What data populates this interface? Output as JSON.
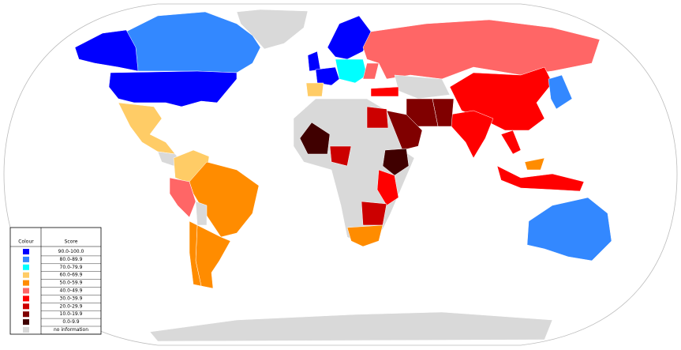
{
  "legend": {
    "header": [
      "Colour",
      "Score"
    ],
    "rows": [
      {
        "label": "90.0-100.0",
        "color": "#0000ff"
      },
      {
        "label": "80.0-89.9",
        "color": "#3388ff"
      },
      {
        "label": "70.0-79.9",
        "color": "#00ffff"
      },
      {
        "label": "60.0-69.9",
        "color": "#ffcc66"
      },
      {
        "label": "50.0-59.9",
        "color": "#ff8c00"
      },
      {
        "label": "40.0-49.9",
        "color": "#ff6666"
      },
      {
        "label": "30.0-39.9",
        "color": "#ff0000"
      },
      {
        "label": "20.0-29.9",
        "color": "#cc0000"
      },
      {
        "label": "10.0-19.9",
        "color": "#800000"
      },
      {
        "label": "0.0-9.9",
        "color": "#400000"
      },
      {
        "label": "no information",
        "color": "#d9d9d9"
      }
    ]
  }
}
